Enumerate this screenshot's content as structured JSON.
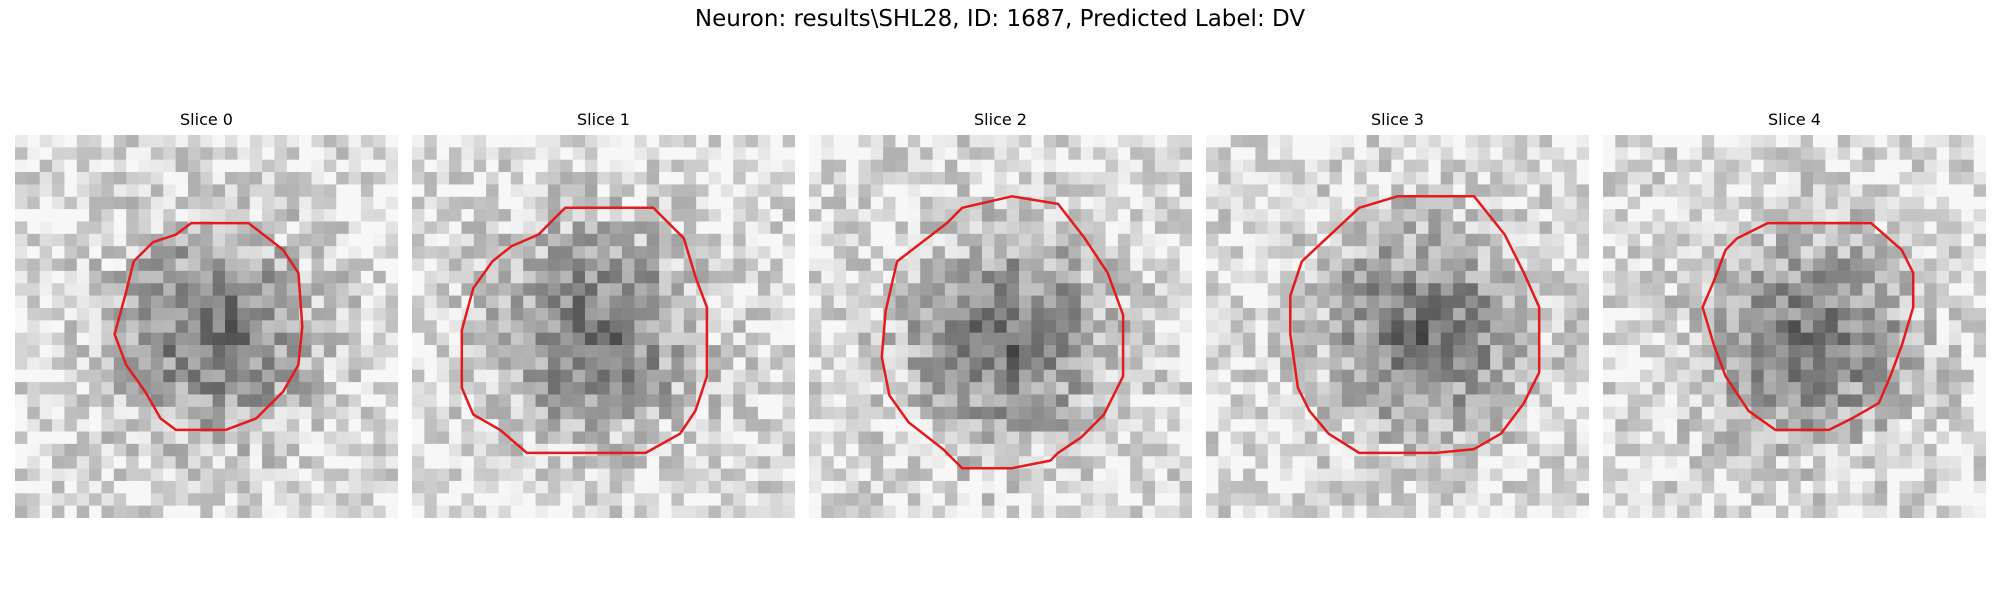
{
  "figure": {
    "title": "Neuron: results\\SHL28, ID: 1687, Predicted Label: DV"
  },
  "contour_color": "#e41a1c",
  "slices": [
    {
      "title": "Slice 0",
      "contour": [
        [
          0.46,
          0.23
        ],
        [
          0.61,
          0.23
        ],
        [
          0.7,
          0.3
        ],
        [
          0.74,
          0.36
        ],
        [
          0.75,
          0.5
        ],
        [
          0.74,
          0.6
        ],
        [
          0.7,
          0.67
        ],
        [
          0.63,
          0.74
        ],
        [
          0.55,
          0.77
        ],
        [
          0.42,
          0.77
        ],
        [
          0.38,
          0.74
        ],
        [
          0.34,
          0.67
        ],
        [
          0.29,
          0.6
        ],
        [
          0.26,
          0.52
        ],
        [
          0.29,
          0.41
        ],
        [
          0.31,
          0.33
        ],
        [
          0.36,
          0.28
        ],
        [
          0.42,
          0.26
        ]
      ],
      "spot": [
        0.5,
        0.5
      ]
    },
    {
      "title": "Slice 1",
      "contour": [
        [
          0.33,
          0.26
        ],
        [
          0.4,
          0.19
        ],
        [
          0.63,
          0.19
        ],
        [
          0.71,
          0.27
        ],
        [
          0.74,
          0.37
        ],
        [
          0.77,
          0.45
        ],
        [
          0.77,
          0.63
        ],
        [
          0.74,
          0.72
        ],
        [
          0.7,
          0.78
        ],
        [
          0.61,
          0.83
        ],
        [
          0.6,
          0.83
        ],
        [
          0.3,
          0.83
        ],
        [
          0.23,
          0.77
        ],
        [
          0.16,
          0.73
        ],
        [
          0.13,
          0.66
        ],
        [
          0.13,
          0.51
        ],
        [
          0.16,
          0.4
        ],
        [
          0.21,
          0.33
        ],
        [
          0.26,
          0.29
        ]
      ],
      "spot": [
        0.46,
        0.5
      ]
    },
    {
      "title": "Slice 2",
      "contour": [
        [
          0.23,
          0.33
        ],
        [
          0.36,
          0.23
        ],
        [
          0.4,
          0.19
        ],
        [
          0.53,
          0.16
        ],
        [
          0.65,
          0.18
        ],
        [
          0.72,
          0.27
        ],
        [
          0.78,
          0.36
        ],
        [
          0.82,
          0.47
        ],
        [
          0.82,
          0.63
        ],
        [
          0.77,
          0.73
        ],
        [
          0.71,
          0.79
        ],
        [
          0.65,
          0.83
        ],
        [
          0.63,
          0.85
        ],
        [
          0.53,
          0.87
        ],
        [
          0.4,
          0.87
        ],
        [
          0.35,
          0.82
        ],
        [
          0.26,
          0.75
        ],
        [
          0.21,
          0.68
        ],
        [
          0.19,
          0.58
        ],
        [
          0.2,
          0.46
        ]
      ],
      "spot": [
        0.5,
        0.52
      ]
    },
    {
      "title": "Slice 3",
      "contour": [
        [
          0.25,
          0.33
        ],
        [
          0.4,
          0.19
        ],
        [
          0.5,
          0.16
        ],
        [
          0.7,
          0.16
        ],
        [
          0.78,
          0.26
        ],
        [
          0.83,
          0.36
        ],
        [
          0.87,
          0.45
        ],
        [
          0.87,
          0.62
        ],
        [
          0.83,
          0.7
        ],
        [
          0.77,
          0.78
        ],
        [
          0.7,
          0.82
        ],
        [
          0.6,
          0.83
        ],
        [
          0.4,
          0.83
        ],
        [
          0.32,
          0.78
        ],
        [
          0.27,
          0.72
        ],
        [
          0.24,
          0.66
        ],
        [
          0.22,
          0.52
        ],
        [
          0.22,
          0.42
        ]
      ],
      "spot": [
        0.55,
        0.5
      ]
    },
    {
      "title": "Slice 4",
      "contour": [
        [
          0.35,
          0.27
        ],
        [
          0.43,
          0.23
        ],
        [
          0.7,
          0.23
        ],
        [
          0.78,
          0.3
        ],
        [
          0.81,
          0.36
        ],
        [
          0.81,
          0.45
        ],
        [
          0.78,
          0.55
        ],
        [
          0.75,
          0.63
        ],
        [
          0.72,
          0.7
        ],
        [
          0.65,
          0.74
        ],
        [
          0.59,
          0.77
        ],
        [
          0.45,
          0.77
        ],
        [
          0.38,
          0.72
        ],
        [
          0.32,
          0.63
        ],
        [
          0.29,
          0.55
        ],
        [
          0.26,
          0.45
        ],
        [
          0.29,
          0.38
        ],
        [
          0.32,
          0.3
        ]
      ],
      "spot": [
        0.52,
        0.52
      ]
    }
  ]
}
